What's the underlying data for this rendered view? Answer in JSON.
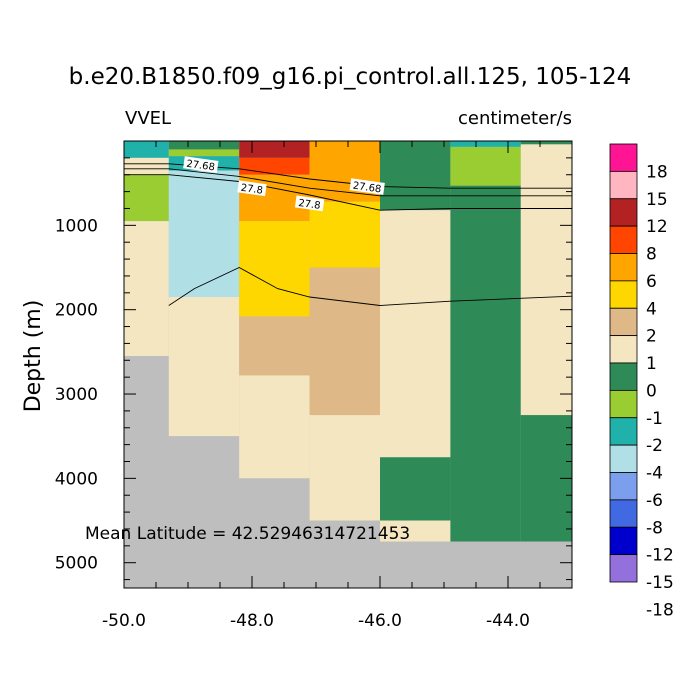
{
  "chart_data": {
    "type": "heatmap",
    "title": "b.e20.B1850.f09_g16.pi_control.all.125, 105-124",
    "variable": "VVEL",
    "units": "centimeter/s",
    "ylabel": "Depth (m)",
    "xlabel": "",
    "xlim": [
      -50.0,
      -43.0
    ],
    "ylim": [
      5300,
      0
    ],
    "xticks": [
      -50.0,
      -48.0,
      -46.0,
      -44.0
    ],
    "xtick_labels": [
      "-50.0",
      "-48.0",
      "-46.0",
      "-44.0"
    ],
    "yticks": [
      1000,
      2000,
      3000,
      4000,
      5000
    ],
    "ytick_labels": [
      "1000",
      "2000",
      "3000",
      "4000",
      "5000"
    ],
    "annotation": "Mean Latitude = 42.52946314721453",
    "missing_color": "#bebebe",
    "colorbar": {
      "labels": [
        "18",
        "15",
        "12",
        "8",
        "6",
        "4",
        "2",
        "1",
        "0",
        "-1",
        "-2",
        "-4",
        "-6",
        "-8",
        "-12",
        "-15",
        "-18"
      ],
      "colors": [
        "#ff1493",
        "#ffb6c1",
        "#b22222",
        "#ff4500",
        "#ffa500",
        "#ffd700",
        "#deb887",
        "#f5e6c2",
        "#2e8b57",
        "#9acd32",
        "#20b2aa",
        "#b0e0e6",
        "#7b9eed",
        "#4169e1",
        "#0000cd",
        "#9370db"
      ]
    },
    "columns": [
      {
        "x0": -50.0,
        "x1": -49.3,
        "cells": [
          {
            "top": 0,
            "bottom": 200,
            "color": "#20b2aa"
          },
          {
            "top": 200,
            "bottom": 400,
            "color": "#f5e6c2"
          },
          {
            "top": 400,
            "bottom": 950,
            "color": "#9acd32"
          },
          {
            "top": 950,
            "bottom": 2550,
            "color": "#f5e6c2"
          },
          {
            "top": 2550,
            "bottom": 5300,
            "color": "#bebebe"
          }
        ]
      },
      {
        "x0": -49.3,
        "x1": -48.2,
        "cells": [
          {
            "top": 0,
            "bottom": 100,
            "color": "#2e8b57"
          },
          {
            "top": 100,
            "bottom": 180,
            "color": "#9acd32"
          },
          {
            "top": 180,
            "bottom": 350,
            "color": "#20b2aa"
          },
          {
            "top": 350,
            "bottom": 1850,
            "color": "#b0e0e6"
          },
          {
            "top": 1850,
            "bottom": 3500,
            "color": "#f5e6c2"
          },
          {
            "top": 3500,
            "bottom": 5300,
            "color": "#bebebe"
          }
        ]
      },
      {
        "x0": -48.2,
        "x1": -47.1,
        "cells": [
          {
            "top": 0,
            "bottom": 200,
            "color": "#b22222"
          },
          {
            "top": 200,
            "bottom": 400,
            "color": "#ff4500"
          },
          {
            "top": 400,
            "bottom": 950,
            "color": "#ffa500"
          },
          {
            "top": 950,
            "bottom": 2080,
            "color": "#ffd700"
          },
          {
            "top": 2080,
            "bottom": 2780,
            "color": "#deb887"
          },
          {
            "top": 2780,
            "bottom": 4000,
            "color": "#f5e6c2"
          },
          {
            "top": 4000,
            "bottom": 5300,
            "color": "#bebebe"
          }
        ]
      },
      {
        "x0": -47.1,
        "x1": -46.0,
        "cells": [
          {
            "top": 0,
            "bottom": 720,
            "color": "#ffa500"
          },
          {
            "top": 720,
            "bottom": 1500,
            "color": "#ffd700"
          },
          {
            "top": 1500,
            "bottom": 3250,
            "color": "#deb887"
          },
          {
            "top": 3250,
            "bottom": 4500,
            "color": "#f5e6c2"
          },
          {
            "top": 4500,
            "bottom": 5300,
            "color": "#bebebe"
          }
        ]
      },
      {
        "x0": -46.0,
        "x1": -44.9,
        "cells": [
          {
            "top": 0,
            "bottom": 820,
            "color": "#2e8b57"
          },
          {
            "top": 820,
            "bottom": 3750,
            "color": "#f5e6c2"
          },
          {
            "top": 3750,
            "bottom": 4500,
            "color": "#2e8b57"
          },
          {
            "top": 4500,
            "bottom": 4750,
            "color": "#f5e6c2"
          },
          {
            "top": 4750,
            "bottom": 5300,
            "color": "#bebebe"
          }
        ]
      },
      {
        "x0": -44.9,
        "x1": -43.8,
        "cells": [
          {
            "top": 0,
            "bottom": 70,
            "color": "#20b2aa"
          },
          {
            "top": 70,
            "bottom": 530,
            "color": "#9acd32"
          },
          {
            "top": 530,
            "bottom": 4750,
            "color": "#2e8b57"
          },
          {
            "top": 4750,
            "bottom": 5300,
            "color": "#bebebe"
          }
        ]
      },
      {
        "x0": -43.8,
        "x1": -43.0,
        "cells": [
          {
            "top": 0,
            "bottom": 40,
            "color": "#2e8b57"
          },
          {
            "top": 40,
            "bottom": 3250,
            "color": "#f5e6c2"
          },
          {
            "top": 3250,
            "bottom": 4750,
            "color": "#2e8b57"
          },
          {
            "top": 4750,
            "bottom": 5300,
            "color": "#bebebe"
          }
        ]
      }
    ],
    "contours": [
      {
        "level": "27.68",
        "points": [
          [
            -50.0,
            270
          ],
          [
            -49.3,
            270
          ],
          [
            -48.2,
            330
          ],
          [
            -47.1,
            450
          ],
          [
            -46.0,
            540
          ],
          [
            -44.9,
            560
          ],
          [
            -43.0,
            560
          ]
        ]
      },
      {
        "level": "27.68",
        "points": [
          [
            -50.0,
            330
          ],
          [
            -49.3,
            330
          ],
          [
            -48.2,
            420
          ],
          [
            -47.1,
            560
          ],
          [
            -46.0,
            650
          ],
          [
            -44.9,
            650
          ],
          [
            -43.0,
            650
          ]
        ]
      },
      {
        "level": "27.8",
        "points": [
          [
            -50.0,
            400
          ],
          [
            -49.3,
            400
          ],
          [
            -48.2,
            480
          ],
          [
            -47.1,
            640
          ],
          [
            -46.0,
            820
          ],
          [
            -44.9,
            800
          ],
          [
            -43.0,
            800
          ]
        ]
      },
      {
        "level": "27.8",
        "points": [
          [
            -49.3,
            1950
          ],
          [
            -48.9,
            1750
          ],
          [
            -48.2,
            1500
          ],
          [
            -47.6,
            1750
          ],
          [
            -47.1,
            1850
          ],
          [
            -46.0,
            1950
          ],
          [
            -44.9,
            1900
          ],
          [
            -43.0,
            1840
          ]
        ]
      }
    ],
    "contour_labels": [
      {
        "text": "27.68",
        "x": -48.8,
        "y": 280
      },
      {
        "text": "27.8",
        "x": -48.0,
        "y": 560
      },
      {
        "text": "27.8",
        "x": -47.1,
        "y": 740
      },
      {
        "text": "27.68",
        "x": -46.2,
        "y": 540
      }
    ]
  }
}
